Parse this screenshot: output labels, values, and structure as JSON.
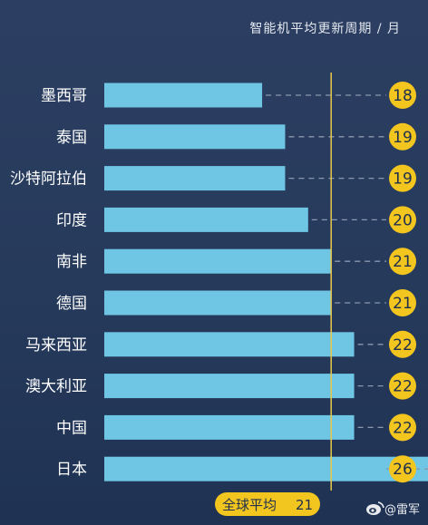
{
  "chart_data": {
    "type": "bar",
    "orientation": "horizontal",
    "title": "智能机平均更新周期 / 月",
    "categories": [
      "墨西哥",
      "泰国",
      "沙特阿拉伯",
      "印度",
      "南非",
      "德国",
      "马来西亚",
      "澳大利亚",
      "中国",
      "日本"
    ],
    "values": [
      18,
      19,
      19,
      20,
      21,
      21,
      22,
      22,
      22,
      26
    ],
    "reference_line": {
      "label": "全球平均",
      "value": 21
    },
    "grid": false,
    "legend": "none"
  },
  "watermark": {
    "text": "@雷军",
    "icon": "weibo-logo-icon"
  },
  "colors": {
    "bar": "#6ec6e4",
    "badge": "#f2c51f",
    "reference_line": "#e8c84a",
    "dashed_leader": "#8a97ad",
    "label_text": "#ffffff"
  }
}
